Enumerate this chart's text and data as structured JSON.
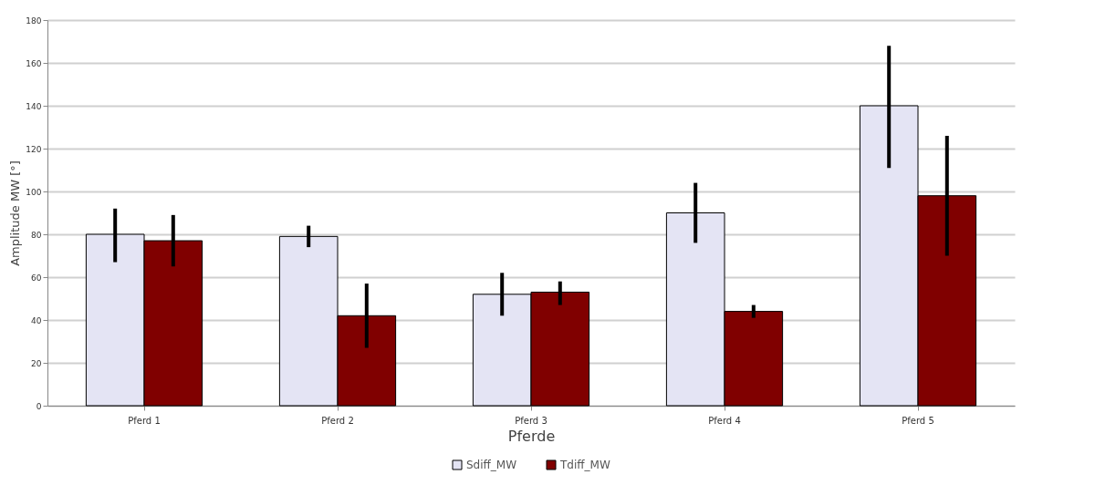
{
  "chart_data": {
    "type": "bar",
    "xlabel": "Pferde",
    "ylabel": "Amplitude MW [°]",
    "categories": [
      "Pferd 1",
      "Pferd 2",
      "Pferd 3",
      "Pferd 4",
      "Pferd 5"
    ],
    "series": [
      {
        "name": "Sdiff_MW",
        "color": "#e4e4f4",
        "values": [
          80,
          79,
          52,
          90,
          140
        ],
        "errors": [
          [
            67,
            92
          ],
          [
            74,
            84
          ],
          [
            42,
            62
          ],
          [
            76,
            104
          ],
          [
            111,
            168
          ]
        ]
      },
      {
        "name": "Tdiff_MW",
        "color": "#800000",
        "values": [
          77,
          42,
          53,
          44,
          98
        ],
        "errors": [
          [
            65,
            89
          ],
          [
            27,
            57
          ],
          [
            47,
            58
          ],
          [
            41,
            47
          ],
          [
            70,
            126
          ]
        ]
      }
    ],
    "ylim": [
      0,
      180
    ],
    "yticks": [
      0,
      20,
      40,
      60,
      80,
      100,
      120,
      140,
      160,
      180
    ],
    "grid": "y",
    "legend": "bottom"
  }
}
